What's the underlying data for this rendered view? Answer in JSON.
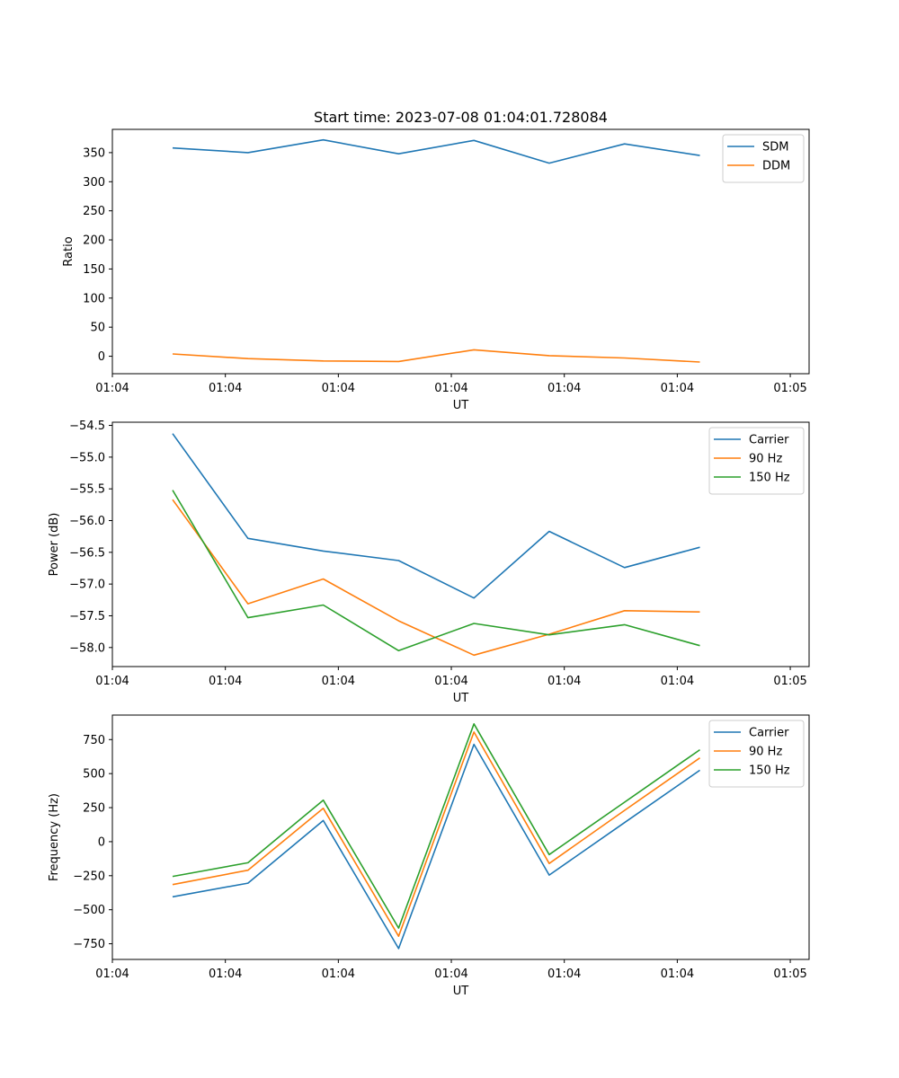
{
  "figure": {
    "title": "Start time: 2023-07-08 01:04:01.728084"
  },
  "chart_data": [
    {
      "type": "line",
      "title": "Start time: 2023-07-08 01:04:01.728084",
      "xlabel": "UT",
      "ylabel": "Ratio",
      "x": [
        1,
        2,
        3,
        4,
        5,
        6,
        7,
        8
      ],
      "xlim": [
        0.2,
        9.45
      ],
      "xticks": [
        0.2,
        1.7,
        3.2,
        4.7,
        6.2,
        7.7,
        9.2
      ],
      "xtick_labels": [
        "01:04",
        "01:04",
        "01:04",
        "01:04",
        "01:04",
        "01:04",
        "01:05"
      ],
      "ylim": [
        -30,
        390
      ],
      "yticks": [
        0,
        50,
        100,
        150,
        200,
        250,
        300,
        350
      ],
      "ytick_labels": [
        "0",
        "50",
        "100",
        "150",
        "200",
        "250",
        "300",
        "350"
      ],
      "legend": "top-right",
      "series": [
        {
          "name": "SDM",
          "color": "#1f77b4",
          "values": [
            358,
            350,
            372,
            348,
            371,
            332,
            365,
            345
          ]
        },
        {
          "name": "DDM",
          "color": "#ff7f0e",
          "values": [
            4,
            -4,
            -8,
            -9,
            11,
            1,
            -3,
            -10
          ]
        }
      ]
    },
    {
      "type": "line",
      "title": "",
      "xlabel": "UT",
      "ylabel": "Power (dB)",
      "x": [
        1,
        2,
        3,
        4,
        5,
        6,
        7,
        8
      ],
      "xlim": [
        0.2,
        9.45
      ],
      "xticks": [
        0.2,
        1.7,
        3.2,
        4.7,
        6.2,
        7.7,
        9.2
      ],
      "xtick_labels": [
        "01:04",
        "01:04",
        "01:04",
        "01:04",
        "01:04",
        "01:04",
        "01:05"
      ],
      "ylim": [
        -58.3,
        -54.45
      ],
      "yticks": [
        -58.0,
        -57.5,
        -57.0,
        -56.5,
        -56.0,
        -55.5,
        -55.0,
        -54.5
      ],
      "ytick_labels": [
        "−58.0",
        "−57.5",
        "−57.0",
        "−56.5",
        "−56.0",
        "−55.5",
        "−55.0",
        "−54.5"
      ],
      "legend": "top-right",
      "series": [
        {
          "name": "Carrier",
          "color": "#1f77b4",
          "values": [
            -54.63,
            -56.28,
            -56.48,
            -56.63,
            -57.22,
            -56.17,
            -56.74,
            -56.42
          ]
        },
        {
          "name": "90 Hz",
          "color": "#ff7f0e",
          "values": [
            -55.67,
            -57.31,
            -56.92,
            -57.58,
            -58.12,
            -57.79,
            -57.42,
            -57.44
          ]
        },
        {
          "name": "150 Hz",
          "color": "#2ca02c",
          "values": [
            -55.52,
            -57.53,
            -57.33,
            -58.05,
            -57.62,
            -57.8,
            -57.64,
            -57.97
          ]
        }
      ]
    },
    {
      "type": "line",
      "title": "",
      "xlabel": "UT",
      "ylabel": "Frequency (Hz)",
      "x": [
        1,
        2,
        3,
        4,
        5,
        6,
        7,
        8
      ],
      "xlim": [
        0.2,
        9.45
      ],
      "xticks": [
        0.2,
        1.7,
        3.2,
        4.7,
        6.2,
        7.7,
        9.2
      ],
      "xtick_labels": [
        "01:04",
        "01:04",
        "01:04",
        "01:04",
        "01:04",
        "01:04",
        "01:05"
      ],
      "ylim": [
        -865,
        930
      ],
      "yticks": [
        -750,
        -500,
        -250,
        0,
        250,
        500,
        750
      ],
      "ytick_labels": [
        "−750",
        "−500",
        "−250",
        "0",
        "250",
        "500",
        "750"
      ],
      "legend": "top-right",
      "series": [
        {
          "name": "Carrier",
          "color": "#1f77b4",
          "values": [
            -405,
            -305,
            155,
            -785,
            715,
            -245,
            140,
            525
          ]
        },
        {
          "name": "90 Hz",
          "color": "#ff7f0e",
          "values": [
            -315,
            -210,
            245,
            -695,
            805,
            -160,
            230,
            615
          ]
        },
        {
          "name": "150 Hz",
          "color": "#2ca02c",
          "values": [
            -255,
            -155,
            305,
            -635,
            865,
            -95,
            290,
            675
          ]
        }
      ]
    }
  ]
}
